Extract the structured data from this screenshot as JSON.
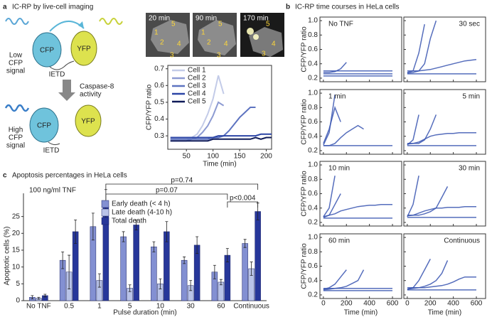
{
  "panels": {
    "a": {
      "label": "a",
      "title": "IC-RP by live-cell imaging"
    },
    "b": {
      "label": "b",
      "title": "IC-RP time courses in HeLa cells"
    },
    "c": {
      "label": "c",
      "title": "Apoptosis percentages in HeLa cells"
    }
  },
  "diagram": {
    "low_signal": [
      "Low",
      "CFP",
      "signal"
    ],
    "high_signal": [
      "High",
      "CFP",
      "signal"
    ],
    "cfp": "CFP",
    "yfp": "YFP",
    "linker": "IETD",
    "process": [
      "Caspase-8",
      "activity"
    ]
  },
  "images": [
    {
      "time": "20 min",
      "labels": [
        "1",
        "5",
        "2",
        "4",
        "3"
      ]
    },
    {
      "time": "90 min",
      "labels": [
        "1",
        "5",
        "2",
        "4",
        "3"
      ]
    },
    {
      "time": "170 min",
      "labels": [
        "5",
        "4",
        "3"
      ]
    }
  ],
  "chart_data": [
    {
      "type": "line",
      "xlabel": "Time (min)",
      "ylabel": "CFP/YFP ratio",
      "x": [
        20,
        30,
        40,
        50,
        60,
        70,
        80,
        90,
        100,
        110,
        120,
        130,
        140,
        150,
        160,
        170,
        180,
        190,
        200,
        210
      ],
      "xlim": [
        15,
        210
      ],
      "xticks": [
        50,
        100,
        150,
        200
      ],
      "ylim": [
        0.22,
        0.72
      ],
      "yticks": [
        0.3,
        0.4,
        0.5,
        0.6,
        0.7
      ],
      "series": [
        {
          "name": "Cell 1",
          "color": "#c3cbe8",
          "values": [
            0.28,
            0.28,
            0.28,
            0.28,
            0.29,
            0.31,
            0.36,
            0.43,
            0.52,
            0.66,
            0.55,
            null,
            null,
            null,
            null,
            null,
            null,
            null,
            null,
            null
          ]
        },
        {
          "name": "Cell 2",
          "color": "#8d9bd2",
          "values": [
            0.27,
            0.27,
            0.27,
            0.27,
            0.28,
            0.29,
            0.32,
            0.36,
            0.42,
            0.5,
            0.48,
            null,
            null,
            null,
            null,
            null,
            null,
            null,
            null,
            null
          ]
        },
        {
          "name": "Cell 3",
          "color": "#5d73c0",
          "values": [
            0.28,
            0.28,
            0.28,
            0.28,
            0.28,
            0.28,
            0.28,
            0.28,
            0.29,
            0.29,
            0.3,
            0.33,
            0.37,
            0.41,
            0.44,
            0.47,
            0.47,
            null,
            null,
            null
          ]
        },
        {
          "name": "Cell 4",
          "color": "#2c45a6",
          "values": [
            0.29,
            0.29,
            0.29,
            0.29,
            0.29,
            0.29,
            0.29,
            0.29,
            0.29,
            0.3,
            0.3,
            0.3,
            0.3,
            0.3,
            0.3,
            0.3,
            0.3,
            0.31,
            0.31,
            0.31
          ]
        },
        {
          "name": "Cell 5",
          "color": "#0e1a58",
          "values": [
            0.27,
            0.27,
            0.27,
            0.27,
            0.27,
            0.27,
            0.27,
            0.27,
            0.28,
            0.28,
            0.28,
            0.28,
            0.28,
            0.28,
            0.28,
            0.28,
            0.29,
            0.28,
            0.29,
            0.29
          ]
        }
      ]
    },
    {
      "type": "bar",
      "xlabel": "Pulse duration (min)",
      "ylabel": "Apoptotic cells (%)",
      "annotations": [
        "100 ng/ml TNF",
        "p=0.74",
        "p=0.07",
        "p<0.004"
      ],
      "categories": [
        "No TNF",
        "0.5",
        "1",
        "5",
        "10",
        "30",
        "60",
        "Continuous"
      ],
      "ylim": [
        0,
        34
      ],
      "yticks": [
        0,
        5,
        10,
        15,
        20,
        25
      ],
      "series": [
        {
          "name": "Early death (< 4 h)",
          "color": "#8390d2",
          "values": [
            1,
            12,
            22,
            19,
            16,
            12,
            8.5,
            17
          ],
          "errors": [
            0.5,
            2.5,
            4,
            1.5,
            1.5,
            1,
            2,
            1.2
          ]
        },
        {
          "name": "Late death (4-10 h)",
          "color": "#b9c3e8",
          "values": [
            0.7,
            8.5,
            6,
            3.7,
            5,
            4.5,
            5.5,
            9.5
          ],
          "errors": [
            0.3,
            5,
            2,
            1,
            1.5,
            1.5,
            0.8,
            2
          ]
        },
        {
          "name": "Total death",
          "color": "#27379a",
          "values": [
            1.5,
            20.5,
            28,
            22.5,
            20.5,
            16.5,
            13.5,
            26.5
          ],
          "errors": [
            0.4,
            3.5,
            5,
            1.5,
            3,
            2.5,
            2,
            2.5
          ]
        }
      ]
    },
    {
      "type": "small-multiples",
      "xlabel": "Time (min)",
      "ylabel": "CFP/YFP ratio",
      "color": "#3753b0",
      "x": [
        0,
        50,
        100,
        150,
        200,
        250,
        300,
        350,
        400,
        450,
        500,
        550,
        600
      ],
      "xlim": [
        -30,
        680
      ],
      "xticks": [
        0,
        200,
        400,
        600
      ],
      "ylim": [
        0.15,
        1.05
      ],
      "yticks": [
        0.2,
        0.4,
        0.6,
        0.8,
        {
          "value": 1.0,
          "label": "1.0"
        }
      ],
      "panels": [
        {
          "title": "No TNF",
          "series": [
            {
              "values": [
                0.26,
                0.26,
                0.26,
                0.26,
                0.26,
                0.26,
                0.26,
                0.26,
                0.26,
                0.26,
                0.26,
                0.26,
                0.26
              ]
            },
            {
              "values": [
                0.3,
                0.3,
                0.3,
                0.3,
                0.3,
                0.3,
                0.3,
                0.3,
                0.3,
                0.3,
                0.3,
                0.3,
                0.3
              ]
            },
            {
              "values": [
                0.23,
                0.23,
                0.23,
                0.23,
                0.23,
                0.23,
                0.23,
                0.23,
                0.23,
                0.23,
                0.23,
                0.23,
                0.23
              ]
            },
            {
              "values": [
                0.28,
                0.28,
                0.29,
                0.33,
                0.42,
                null,
                null,
                null,
                null,
                null,
                null,
                null,
                null
              ]
            }
          ]
        },
        {
          "title": "30 sec",
          "series": [
            {
              "values": [
                0.28,
                0.3,
                0.55,
                0.95,
                null,
                null,
                null,
                null,
                null,
                null,
                null,
                null,
                null
              ]
            },
            {
              "values": [
                0.27,
                0.28,
                0.3,
                0.4,
                0.75,
                1.0,
                null,
                null,
                null,
                null,
                null,
                null,
                null
              ]
            },
            {
              "values": [
                0.26,
                0.26,
                0.26,
                0.26,
                0.26,
                0.26,
                0.26,
                0.26,
                0.26,
                0.26,
                0.26,
                0.26,
                0.26
              ]
            },
            {
              "values": [
                0.3,
                0.3,
                0.3,
                0.31,
                0.32,
                0.34,
                0.36,
                0.38,
                0.4,
                0.42,
                0.44,
                0.45,
                0.46
              ]
            }
          ]
        },
        {
          "title": "1 min",
          "series": [
            {
              "values": [
                0.28,
                0.45,
                0.98,
                null,
                null,
                null,
                null,
                null,
                null,
                null,
                null,
                null,
                null
              ]
            },
            {
              "values": [
                0.3,
                0.5,
                0.8,
                0.6,
                null,
                null,
                null,
                null,
                null,
                null,
                null,
                null,
                null
              ]
            },
            {
              "values": [
                0.27,
                0.27,
                0.3,
                0.38,
                0.45,
                0.5,
                0.55,
                0.5,
                null,
                null,
                null,
                null,
                null
              ]
            },
            {
              "values": [
                0.27,
                0.27,
                0.27,
                0.27,
                0.27,
                0.27,
                0.27,
                0.27,
                0.27,
                0.27,
                0.27,
                0.27,
                0.27
              ]
            }
          ]
        },
        {
          "title": "5 min",
          "series": [
            {
              "values": [
                0.28,
                0.35,
                0.7,
                null,
                null,
                null,
                null,
                null,
                null,
                null,
                null,
                null,
                null
              ]
            },
            {
              "values": [
                0.29,
                0.3,
                0.32,
                0.36,
                0.4,
                0.42,
                0.43,
                0.44,
                0.44,
                0.45,
                0.45,
                0.45,
                0.45
              ]
            },
            {
              "values": [
                0.27,
                0.27,
                0.27,
                0.27,
                0.27,
                0.27,
                0.27,
                0.27,
                0.27,
                0.27,
                0.27,
                0.27,
                0.27
              ]
            },
            {
              "values": [
                0.3,
                0.3,
                0.3,
                0.35,
                0.5,
                0.7,
                null,
                null,
                null,
                null,
                null,
                null,
                null
              ]
            }
          ]
        },
        {
          "title": "10 min",
          "series": [
            {
              "values": [
                0.28,
                0.4,
                0.85,
                null,
                null,
                null,
                null,
                null,
                null,
                null,
                null,
                null,
                null
              ]
            },
            {
              "values": [
                0.27,
                0.3,
                0.45,
                0.6,
                null,
                null,
                null,
                null,
                null,
                null,
                null,
                null,
                null
              ]
            },
            {
              "values": [
                0.28,
                0.3,
                0.32,
                0.36,
                0.38,
                0.4,
                0.42,
                0.43,
                0.44,
                0.44,
                0.45,
                0.45,
                0.45
              ]
            },
            {
              "values": [
                0.26,
                0.26,
                0.26,
                0.26,
                0.26,
                0.26,
                0.26,
                0.26,
                0.26,
                0.26,
                0.26,
                0.26,
                0.26
              ]
            }
          ]
        },
        {
          "title": "30 min",
          "series": [
            {
              "values": [
                0.28,
                0.45,
                0.85,
                null,
                null,
                null,
                null,
                null,
                null,
                null,
                null,
                null,
                null
              ]
            },
            {
              "values": [
                0.29,
                0.3,
                0.33,
                0.36,
                0.38,
                0.4,
                0.4,
                0.41,
                0.41,
                0.41,
                0.42,
                0.42,
                0.42
              ]
            },
            {
              "values": [
                0.27,
                0.27,
                0.27,
                0.27,
                0.27,
                0.27,
                0.27,
                0.27,
                0.27,
                0.27,
                0.27,
                0.27,
                0.27
              ]
            },
            {
              "values": [
                0.3,
                0.3,
                0.3,
                0.32,
                0.35,
                0.4,
                0.55,
                0.7,
                null,
                null,
                null,
                null,
                null
              ]
            }
          ]
        },
        {
          "title": "60 min",
          "series": [
            {
              "values": [
                0.28,
                0.3,
                0.35,
                0.45,
                0.55,
                null,
                null,
                null,
                null,
                null,
                null,
                null,
                null
              ]
            },
            {
              "values": [
                0.27,
                0.28,
                0.29,
                0.3,
                0.32,
                0.36,
                0.4,
                0.55,
                null,
                null,
                null,
                null,
                null
              ]
            },
            {
              "values": [
                0.26,
                0.26,
                0.26,
                0.26,
                0.26,
                0.26,
                0.26,
                0.26,
                0.26,
                0.26,
                0.26,
                0.26,
                0.26
              ]
            },
            {
              "values": [
                0.29,
                0.29,
                0.29,
                0.29,
                0.29,
                0.29,
                0.29,
                0.29,
                0.29,
                0.29,
                0.29,
                0.29,
                0.29
              ]
            }
          ]
        },
        {
          "title": "Continuous",
          "series": [
            {
              "values": [
                0.28,
                0.3,
                0.4,
                0.55,
                0.7,
                null,
                null,
                null,
                null,
                null,
                null,
                null,
                null
              ]
            },
            {
              "values": [
                0.28,
                0.29,
                0.3,
                0.32,
                0.35,
                0.4,
                0.5,
                0.68,
                null,
                null,
                null,
                null,
                null
              ]
            },
            {
              "values": [
                0.27,
                0.27,
                0.27,
                0.27,
                0.27,
                0.27,
                0.27,
                0.27,
                0.27,
                0.27,
                0.27,
                0.27,
                0.27
              ]
            },
            {
              "values": [
                0.3,
                0.3,
                0.3,
                0.3,
                0.31,
                0.32,
                0.33,
                0.35,
                0.38,
                0.42,
                0.45,
                0.45,
                0.45
              ]
            }
          ]
        }
      ]
    }
  ]
}
